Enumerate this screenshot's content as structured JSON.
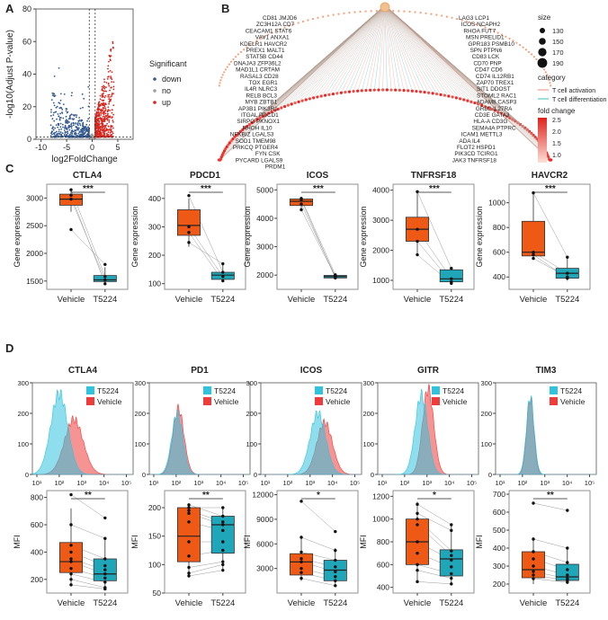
{
  "panel_labels": [
    "A",
    "B",
    "C",
    "D"
  ],
  "colors": {
    "up": "#d7261e",
    "down": "#33598f",
    "no": "#9e9e9e",
    "vehicle": "#ee5a16",
    "t5224": "#1fa6b8",
    "hist_t5224": "#31c2de",
    "hist_vehicle": "#ee3b3b",
    "activation": "#f08a7a",
    "differentiation": "#34c0bc"
  },
  "chart_data": [
    {
      "type": "scatter",
      "panel": "A",
      "xlabel": "log2FoldChange",
      "ylabel": "-log10(Adjust P-value)",
      "xlim": [
        -11,
        8
      ],
      "ylim": [
        0,
        80
      ],
      "xticks": [
        "-10",
        "-5",
        "0",
        "5"
      ],
      "yticks": [
        "0",
        "20",
        "40",
        "60",
        "80"
      ],
      "legend_title": "Significant",
      "legend": [
        "down",
        "no",
        "up"
      ],
      "thresholds": {
        "x": [
          -0.58,
          0.58
        ],
        "y": 1.3
      }
    },
    {
      "type": "network",
      "panel": "B",
      "hub_genes_left": [
        "CD81",
        "JMJD6",
        "ZC3H12A",
        "CD7",
        "CEACAM1",
        "STAT6",
        "VAV1",
        "ANXA1",
        "KDELR1",
        "HAVCR2",
        "PREX1",
        "MALT1",
        "STAT5B",
        "CD44",
        "DNAJA3",
        "ZFP36L2",
        "MAD1L1",
        "CRTAM",
        "RASAL3",
        "CD28",
        "TOX",
        "EGR1",
        "IL4R",
        "NLRC3",
        "RELB",
        "BCL3",
        "MYB",
        "ZBTB1",
        "AP3B1",
        "PIK3R1",
        "ITGAL",
        "PDCD1",
        "SIRPG",
        "PKNOX1",
        "RHOH",
        "IL10",
        "NFKBIZ",
        "LGALS3",
        "SOD1",
        "TMEM98",
        "PRKCQ",
        "PTGER4",
        "FYN",
        "CSK",
        "PYCARD",
        "LGALS9",
        "PRDM1"
      ],
      "hub_genes_right": [
        "LAG3",
        "LCP1",
        "ICOS",
        "NCAPH2",
        "RHOA",
        "FUT7",
        "MSN",
        "PRELID1",
        "GPR183",
        "PSMB10",
        "SPN",
        "PTPN6",
        "CD83",
        "LCK",
        "CD70",
        "PNP",
        "CD47",
        "CD6",
        "CD74",
        "IL12RB1",
        "ZAP70",
        "TREX1",
        "SIT1",
        "DDOST",
        "STOML2",
        "RAC1",
        "ADAM8",
        "CASP3",
        "GRB2",
        "IL27RA",
        "CD3E",
        "GATA3",
        "HLA-A",
        "CD3G",
        "SEMA4A",
        "PTPRC",
        "ICAM1",
        "METTL3",
        "ADA",
        "IL4",
        "FLOT2",
        "HSPD1",
        "PIK3CD",
        "TCIRG1",
        "JAK3",
        "TNFRSF18"
      ],
      "size_legend": {
        "title": "size",
        "values": [
          "130",
          "150",
          "170",
          "190"
        ]
      },
      "category_legend": {
        "title": "category",
        "items": [
          "T cell activation",
          "T cell differentiation"
        ]
      },
      "fold_legend": {
        "title": "fold change",
        "ticks": [
          "2.5",
          "2.0",
          "1.5",
          "1.0"
        ]
      }
    },
    {
      "type": "box",
      "panel": "C",
      "ylabel": "Gene expression",
      "categories": [
        "Vehicle",
        "T5224"
      ],
      "plots": [
        {
          "title": "CTLA4",
          "sig": "***",
          "ylim": [
            1350,
            3250
          ],
          "yticks": [
            1500,
            2000,
            2500,
            3000
          ],
          "box": [
            [
              2750,
              2870,
              2980,
              3070,
              3150
            ],
            [
              1450,
              1490,
              1520,
              1600,
              1750
            ]
          ],
          "pts": [
            [
              2980,
              3150,
              3050,
              2430
            ],
            [
              1520,
              1580,
              1450,
              1800
            ]
          ]
        },
        {
          "title": "PDCD1",
          "sig": "***",
          "ylim": [
            80,
            450
          ],
          "yticks": [
            100,
            200,
            300,
            400
          ],
          "box": [
            [
              230,
              270,
              305,
              360,
              400
            ],
            [
              105,
              115,
              130,
              140,
              175
            ]
          ],
          "pts": [
            [
              300,
              410,
              280,
              245
            ],
            [
              125,
              140,
              110,
              170
            ]
          ]
        },
        {
          "title": "ICOS",
          "sig": "***",
          "ylim": [
            1500,
            5200
          ],
          "yticks": [
            2000,
            3000,
            4000,
            5000
          ],
          "box": [
            [
              4300,
              4450,
              4600,
              4680,
              4750
            ],
            [
              1850,
              1900,
              1950,
              1990,
              2020
            ]
          ],
          "pts": [
            [
              4300,
              4650,
              4700,
              4500
            ],
            [
              1950,
              1900,
              2010,
              1960
            ]
          ]
        },
        {
          "title": "TNFRSF18",
          "sig": "***",
          "ylim": [
            700,
            4200
          ],
          "yticks": [
            1000,
            2000,
            3000,
            4000
          ],
          "box": [
            [
              1850,
              2300,
              2700,
              3100,
              3950
            ],
            [
              900,
              950,
              1050,
              1350,
              1450
            ]
          ],
          "pts": [
            [
              2700,
              3950,
              2300,
              1850
            ],
            [
              1050,
              1400,
              950,
              900
            ]
          ]
        },
        {
          "title": "HAVCR2",
          "sig": "***",
          "ylim": [
            300,
            1150
          ],
          "yticks": [
            400,
            600,
            800,
            1000
          ],
          "box": [
            [
              550,
              570,
              600,
              850,
              1080
            ],
            [
              370,
              390,
              430,
              470,
              560
            ]
          ],
          "pts": [
            [
              600,
              1080,
              580,
              550
            ],
            [
              430,
              560,
              390,
              400
            ]
          ]
        }
      ]
    },
    {
      "type": "area",
      "panel": "D-histogram",
      "xticks": [
        "10¹",
        "10²",
        "10³",
        "10⁴",
        "10⁵"
      ],
      "legend": [
        "T5224",
        "Vehicle"
      ],
      "plots": [
        {
          "title": "CTLA4",
          "ymax": 300,
          "yticks": [
            0,
            100,
            200,
            300
          ],
          "t5224": {
            "peak_log": 2.0,
            "height": 265,
            "width": 0.38
          },
          "vehicle": {
            "peak_log": 2.65,
            "height": 180,
            "width": 0.42
          }
        },
        {
          "title": "PD1",
          "ymax": 300,
          "yticks": [
            0,
            100,
            200,
            300
          ],
          "t5224": {
            "peak_log": 2.05,
            "height": 200,
            "width": 0.25
          },
          "vehicle": {
            "peak_log": 2.1,
            "height": 215,
            "width": 0.25
          }
        },
        {
          "title": "ICOS",
          "ymax": 300,
          "yticks": [
            0,
            100,
            200,
            300
          ],
          "t5224": {
            "peak_log": 3.35,
            "height": 200,
            "width": 0.35
          },
          "vehicle": {
            "peak_log": 3.65,
            "height": 170,
            "width": 0.35
          }
        },
        {
          "title": "GITR",
          "ymax": 300,
          "yticks": [
            0,
            100,
            200,
            300
          ],
          "t5224": {
            "peak_log": 2.75,
            "height": 260,
            "width": 0.28
          },
          "vehicle": {
            "peak_log": 3.05,
            "height": 280,
            "width": 0.25
          }
        },
        {
          "title": "TIM3",
          "ymax": 300,
          "yticks": [
            0,
            100,
            200,
            300
          ],
          "t5224": {
            "peak_log": 2.35,
            "height": 255,
            "width": 0.17
          },
          "vehicle": {
            "peak_log": 2.35,
            "height": 250,
            "width": 0.16
          }
        }
      ]
    },
    {
      "type": "box",
      "panel": "D-box",
      "ylabel": "MFI",
      "categories": [
        "Vehicle",
        "T5224"
      ],
      "plots": [
        {
          "sig": "**",
          "ylim": [
            100,
            850
          ],
          "yticks": [
            200,
            400,
            600,
            800
          ],
          "box": [
            [
              150,
              250,
              330,
              470,
              720
            ],
            [
              130,
              190,
              240,
              350,
              500
            ]
          ],
          "pts": [
            [
              820,
              600,
              450,
              400,
              350,
              330,
              280,
              240,
              200,
              160
            ],
            [
              650,
              500,
              350,
              300,
              270,
              240,
              210,
              180,
              140,
              130
            ]
          ]
        },
        {
          "sig": "**",
          "ylim": [
            50,
            230
          ],
          "yticks": [
            50,
            100,
            150,
            200
          ],
          "box": [
            [
              80,
              105,
              150,
              200,
              205
            ],
            [
              90,
              120,
              170,
              185,
              200
            ]
          ],
          "pts": [
            [
              200,
              205,
              195,
              190,
              175,
              140,
              115,
              95,
              85,
              80
            ],
            [
              200,
              185,
              175,
              170,
              160,
              140,
              125,
              105,
              100,
              90
            ]
          ]
        },
        {
          "sig": "*",
          "ylim": [
            0,
            12500
          ],
          "yticks": [
            3000,
            6000,
            9000,
            12000
          ],
          "box": [
            [
              1500,
              2200,
              3800,
              4800,
              7000
            ],
            [
              800,
              1500,
              2800,
              4000,
              5500
            ]
          ],
          "pts": [
            [
              11200,
              6800,
              5000,
              4200,
              3800,
              3000,
              2500,
              1800
            ],
            [
              7500,
              5200,
              4000,
              3200,
              2600,
              2000,
              1500,
              900
            ]
          ]
        },
        {
          "sig": "*",
          "ylim": [
            350,
            1250
          ],
          "yticks": [
            400,
            600,
            800,
            1000,
            1200
          ],
          "box": [
            [
              450,
              600,
              800,
              1000,
              1150
            ],
            [
              430,
              500,
              650,
              730,
              950
            ]
          ],
          "pts": [
            [
              1130,
              1050,
              1000,
              950,
              800,
              700,
              600,
              550,
              450
            ],
            [
              950,
              900,
              720,
              680,
              640,
              580,
              520,
              480,
              430
            ]
          ]
        },
        {
          "sig": "**",
          "ylim": [
            150,
            720
          ],
          "yticks": [
            200,
            300,
            400,
            500,
            600,
            700
          ],
          "box": [
            [
              200,
              235,
              280,
              380,
              460
            ],
            [
              200,
              220,
              240,
              310,
              400
            ]
          ],
          "pts": [
            [
              650,
              450,
              380,
              340,
              300,
              270,
              250,
              230
            ],
            [
              610,
              400,
              320,
              280,
              250,
              230,
              220,
              210
            ]
          ]
        }
      ]
    }
  ]
}
